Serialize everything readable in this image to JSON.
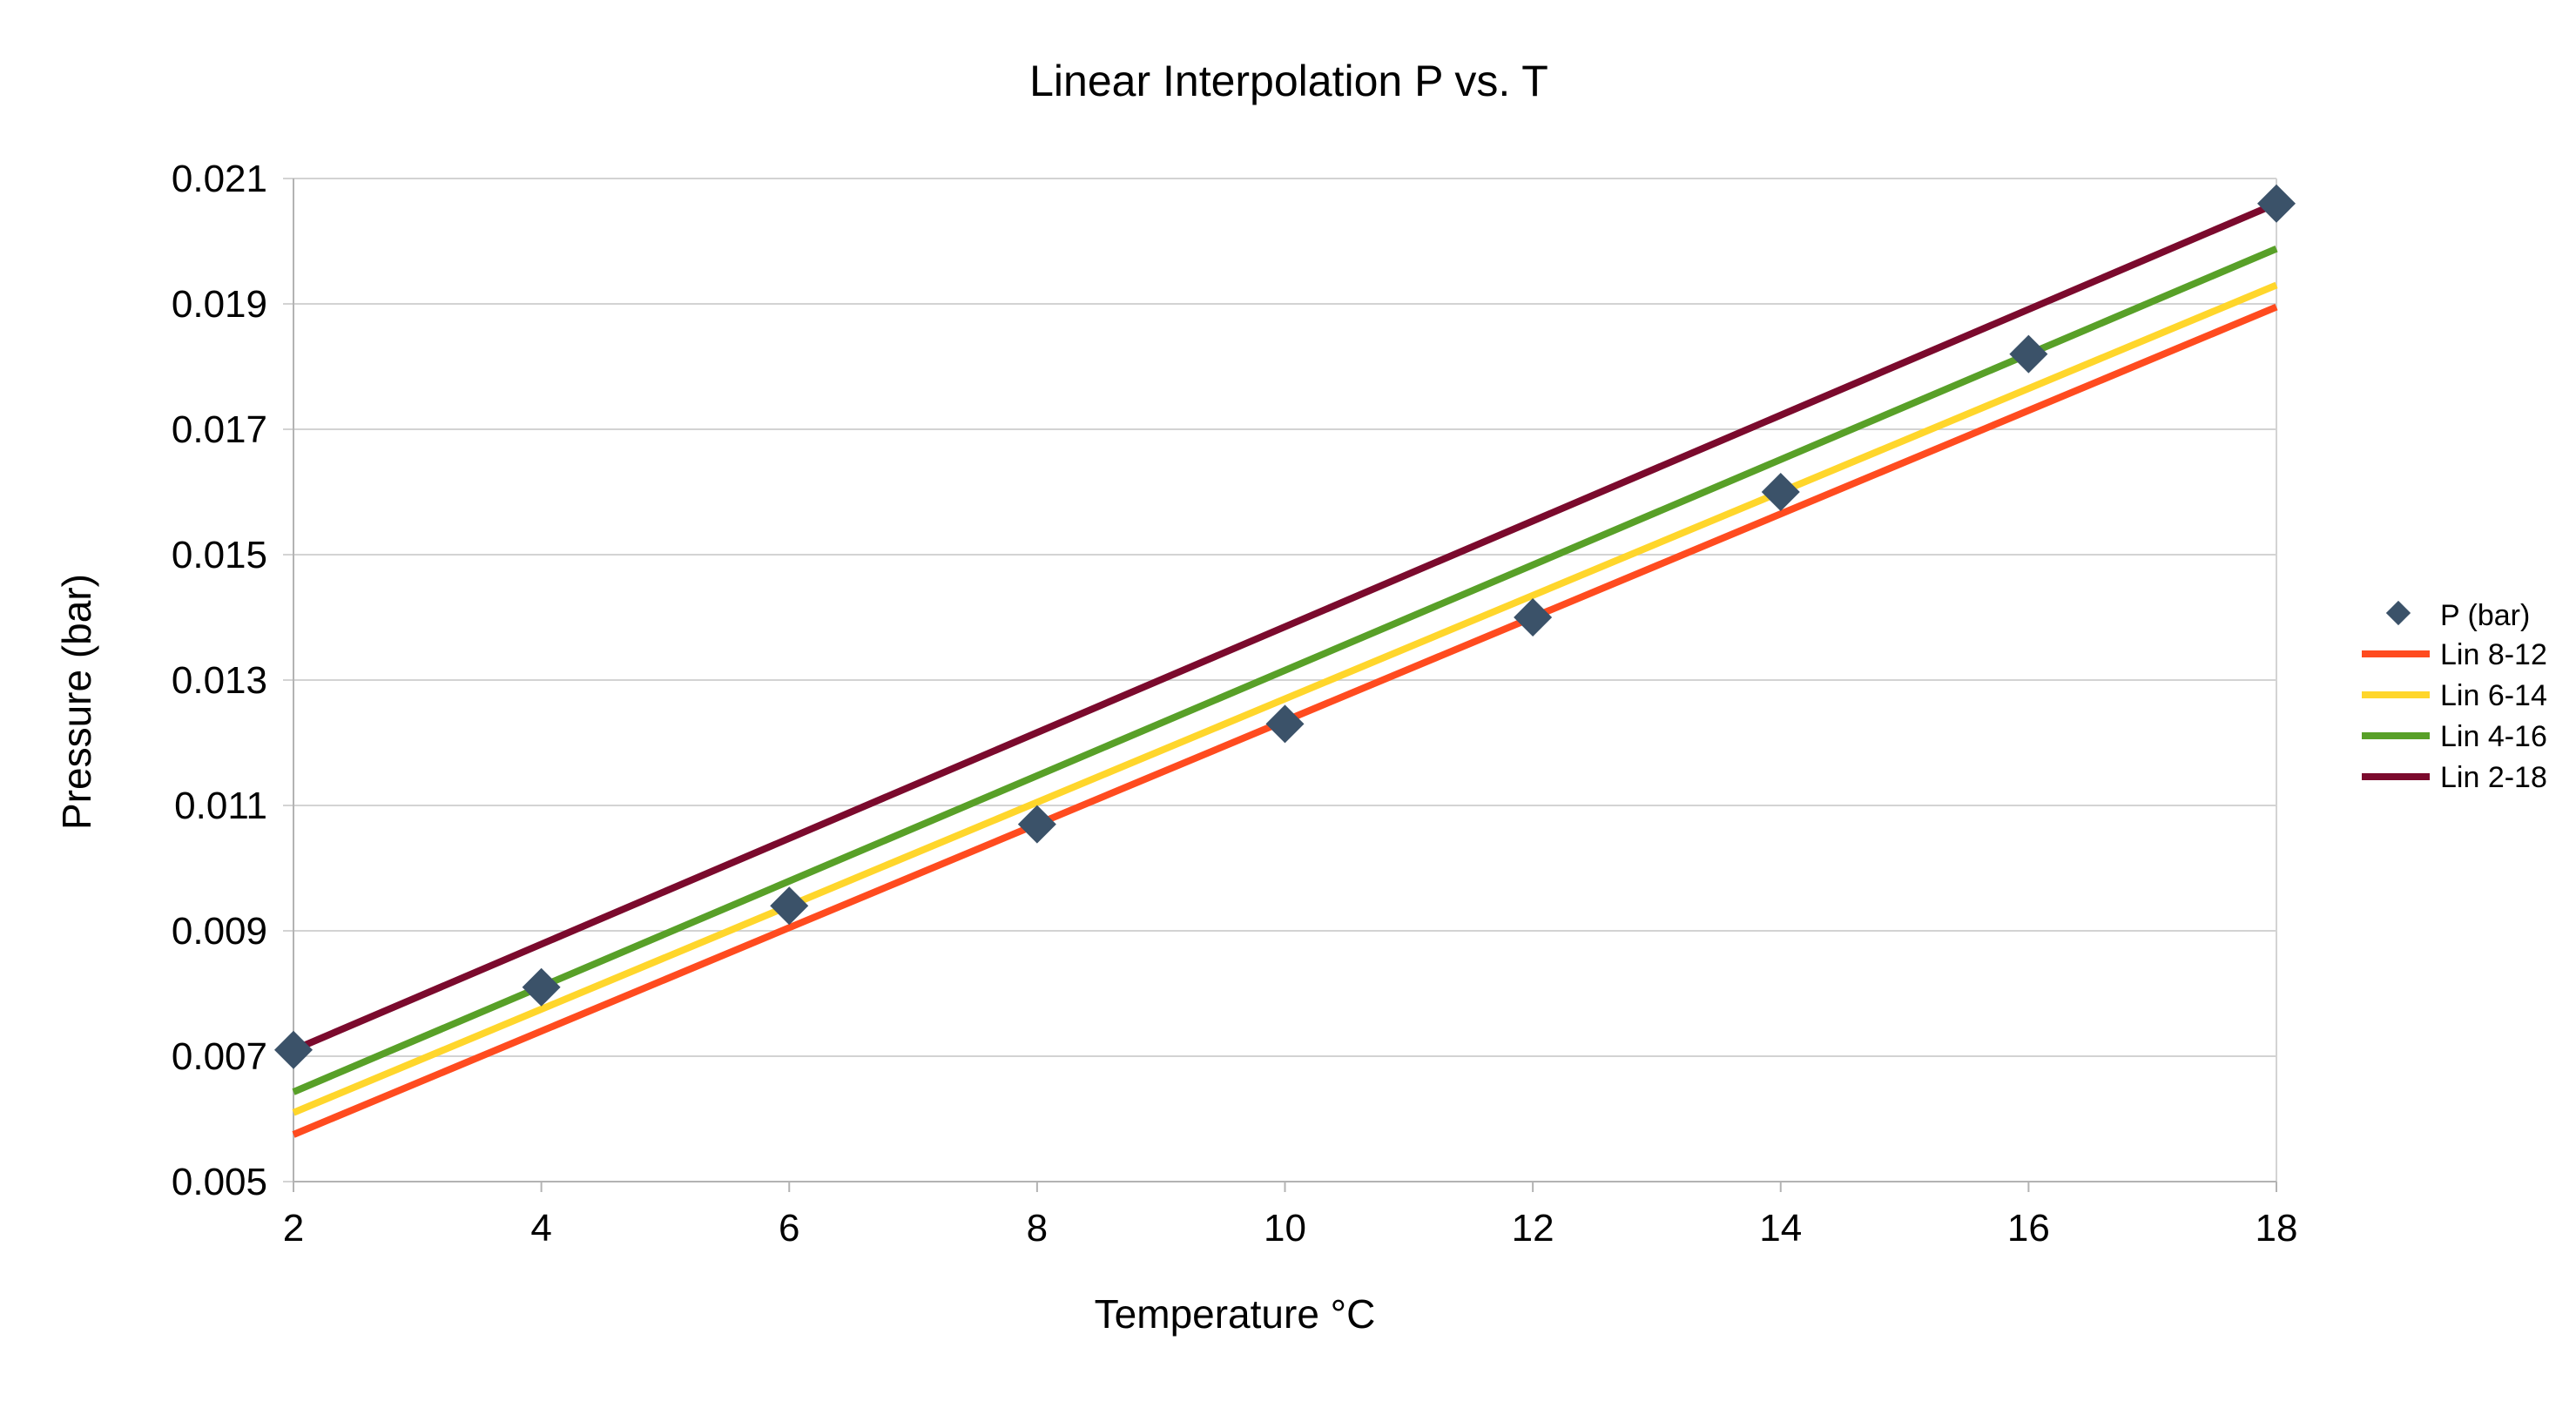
{
  "chart_data": {
    "type": "scatter",
    "title": "Linear Interpolation P vs. T",
    "xlabel": "Temperature °C",
    "ylabel": "Pressure (bar)",
    "xlim": [
      2,
      18
    ],
    "ylim": [
      0.005,
      0.021
    ],
    "xticks": [
      2,
      4,
      6,
      8,
      10,
      12,
      14,
      16,
      18
    ],
    "xtick_labels": [
      "2",
      "4",
      "6",
      "8",
      "10",
      "12",
      "14",
      "16",
      "18"
    ],
    "yticks": [
      0.005,
      0.007,
      0.009,
      0.011,
      0.013,
      0.015,
      0.017,
      0.019,
      0.021
    ],
    "ytick_labels": [
      "0.005",
      "0.007",
      "0.009",
      "0.011",
      "0.013",
      "0.015",
      "0.017",
      "0.019",
      "0.021"
    ],
    "grid": "horizontal",
    "legend_position": "right",
    "points": {
      "name": "P (bar)",
      "color": "#3b5269",
      "marker": "diamond",
      "x": [
        2,
        4,
        6,
        8,
        10,
        12,
        14,
        16,
        18
      ],
      "y": [
        0.0071,
        0.0081,
        0.0094,
        0.0107,
        0.0123,
        0.014,
        0.016,
        0.0182,
        0.0206
      ]
    },
    "lines": [
      {
        "name": "Lin 8-12",
        "color": "#ff4b1f",
        "x": [
          2,
          18
        ],
        "y": [
          0.00575,
          0.01895
        ]
      },
      {
        "name": "Lin 6-14",
        "color": "#ffd62b",
        "x": [
          2,
          18
        ],
        "y": [
          0.0061,
          0.0193
        ]
      },
      {
        "name": "Lin 4-16",
        "color": "#58a028",
        "x": [
          2,
          18
        ],
        "y": [
          0.00643,
          0.01988
        ]
      },
      {
        "name": "Lin 2-18",
        "color": "#7b0a2d",
        "x": [
          2,
          18
        ],
        "y": [
          0.0071,
          0.0206
        ]
      }
    ],
    "colors": {
      "grid": "#d3d3d3",
      "axis": "#b3b3b3"
    }
  }
}
